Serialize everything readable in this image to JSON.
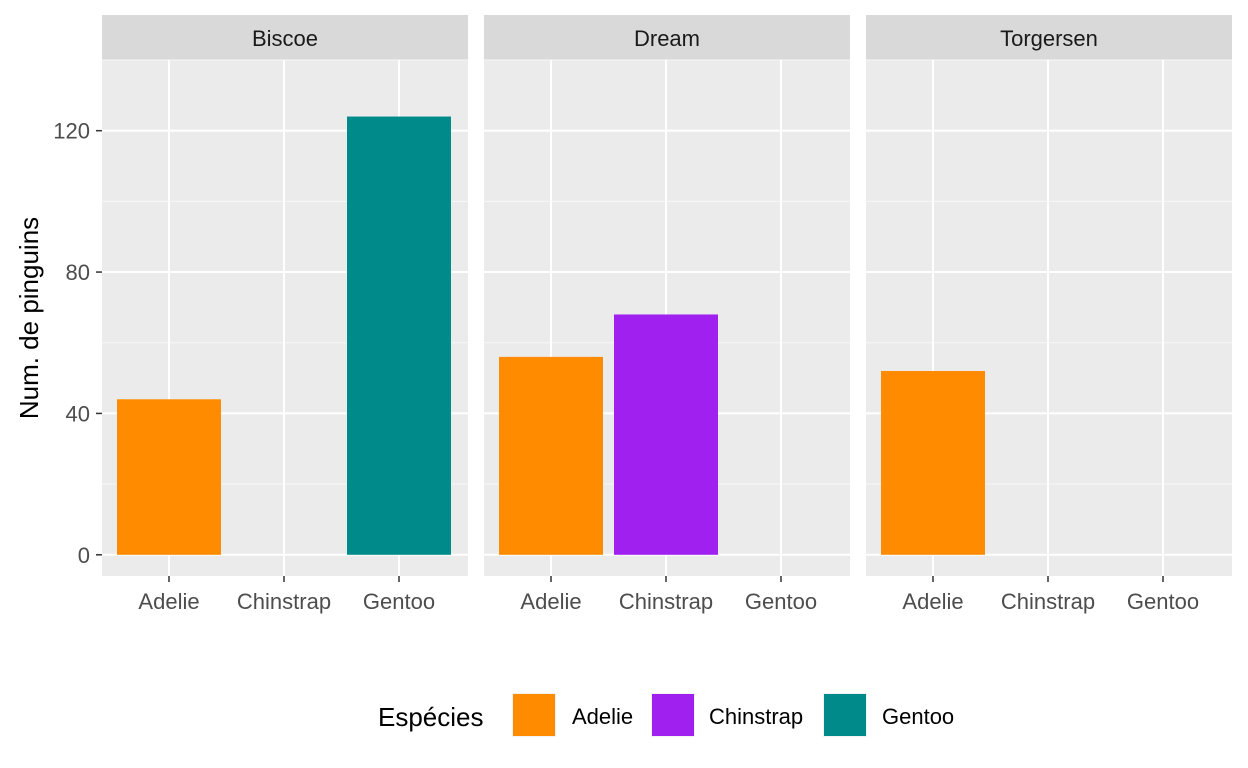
{
  "chart_data": {
    "type": "bar",
    "facet_by": "island",
    "facets": [
      "Biscoe",
      "Dream",
      "Torgersen"
    ],
    "categories": [
      "Adelie",
      "Chinstrap",
      "Gentoo"
    ],
    "ylabel": "Num. de pinguins",
    "xlabel": "",
    "ylim": [
      -6,
      140
    ],
    "yticks": [
      0,
      40,
      80,
      120
    ],
    "grid": true,
    "legend": {
      "title": "Espécies",
      "position": "bottom"
    },
    "series": [
      {
        "name": "Adelie",
        "color": "#FF8C00",
        "values": {
          "Biscoe": 44,
          "Dream": 56,
          "Torgersen": 52
        }
      },
      {
        "name": "Chinstrap",
        "color": "#A020F0",
        "values": {
          "Biscoe": 0,
          "Dream": 68,
          "Torgersen": 0
        }
      },
      {
        "name": "Gentoo",
        "color": "#008B8B",
        "values": {
          "Biscoe": 124,
          "Dream": 0,
          "Torgersen": 0
        }
      }
    ]
  }
}
